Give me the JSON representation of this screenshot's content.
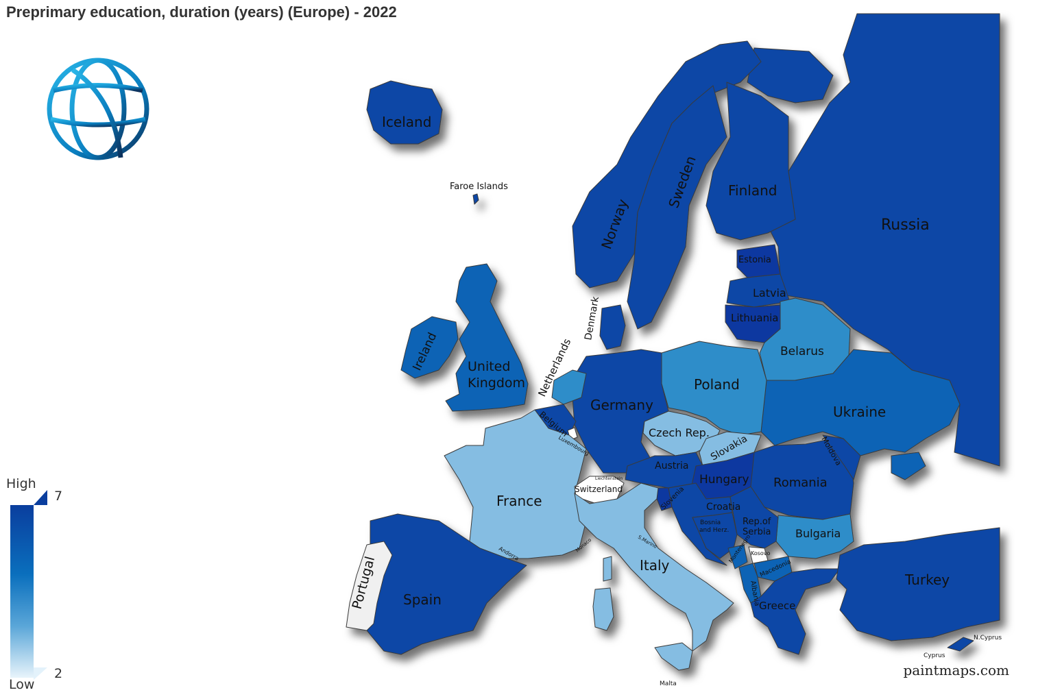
{
  "title": "Preprimary education, duration (years) (Europe) - 2022",
  "credit": "paintmaps.com",
  "logo": "world-bank-globe-logo",
  "legend": {
    "high_label": "High",
    "low_label": "Low",
    "max": "7",
    "min": "2"
  },
  "colors": {
    "dark": "#0a46a6",
    "darkest": "#0939a0",
    "medium": "#0b63b5",
    "mid_light": "#2f8dc9",
    "light": "#85bde2",
    "no_data": "#f0f0f0",
    "water": "#ffffff"
  },
  "countries": {
    "iceland": "Iceland",
    "faroe": "Faroe Islands",
    "norway": "Norway",
    "sweden": "Sweden",
    "finland": "Finland",
    "russia": "Russia",
    "estonia": "Estonia",
    "latvia": "Latvia",
    "lithuania": "Lithuania",
    "denmark": "Denmark",
    "ireland": "Ireland",
    "uk": "United Kingdom",
    "netherlands": "Netherlands",
    "belgium": "Belgium",
    "luxembourg": "Luxembourg",
    "germany": "Germany",
    "poland": "Poland",
    "belarus": "Belarus",
    "ukraine": "Ukraine",
    "czech": "Czech Rep.",
    "slovakia": "Slovakia",
    "moldova": "Moldova",
    "austria": "Austria",
    "hungary": "Hungary",
    "romania": "Romania",
    "liechtenstein": "Liechtenstein",
    "switzerland": "Switzerland",
    "france": "France",
    "slovenia": "Slovenia",
    "croatia": "Croatia",
    "bosnia": "Bosnia and Herz.",
    "serbia": "Rep.of Serbia",
    "bulgaria": "Bulgaria",
    "montenegro": "Montenegro",
    "kosovo": "Kosovo",
    "macedonia": "Macedonia",
    "albania": "Albania",
    "greece": "Greece",
    "turkey": "Turkey",
    "italy": "Italy",
    "san_marino": "S.Marino",
    "monaco": "Monaco",
    "andorra": "Andorra",
    "spain": "Spain",
    "portugal": "Portugal",
    "malta": "Malta",
    "cyprus": "Cyprus",
    "n_cyprus": "N.Cyprus"
  }
}
